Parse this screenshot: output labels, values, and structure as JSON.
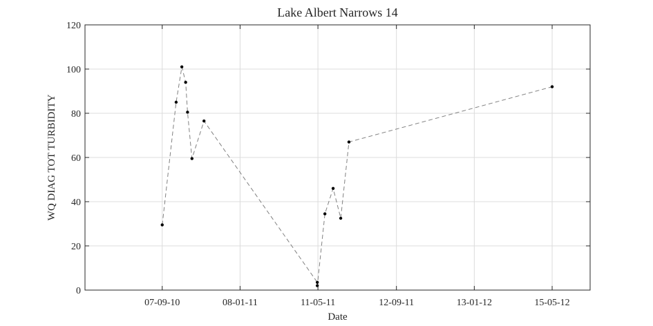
{
  "chart_data": {
    "type": "scatter",
    "title": "Lake Albert Narrows 14",
    "xlabel": "Date",
    "ylabel": "WQ DIAG TOT TURBIDITY",
    "ylim": [
      0,
      120
    ],
    "xlim": [
      "2010-05-08",
      "2012-07-14"
    ],
    "x_tick_values": [
      "2010-09-07",
      "2011-01-08",
      "2011-05-11",
      "2011-09-12",
      "2012-01-13",
      "2012-05-15"
    ],
    "x_tick_labels": [
      "07-09-10",
      "08-01-11",
      "11-05-11",
      "12-09-11",
      "13-01-12",
      "15-05-12"
    ],
    "y_ticks": [
      0,
      20,
      40,
      60,
      80,
      100,
      120
    ],
    "grid": true,
    "series": [
      {
        "line_style": "dashed",
        "line_color": "#808080",
        "marker_color": "#000000",
        "points": [
          {
            "x": "2010-09-07",
            "y": 29.5
          },
          {
            "x": "2010-09-29",
            "y": 85
          },
          {
            "x": "2010-10-08",
            "y": 101
          },
          {
            "x": "2010-10-14",
            "y": 94
          },
          {
            "x": "2010-10-17",
            "y": 80.5
          },
          {
            "x": "2010-10-24",
            "y": 59.5
          },
          {
            "x": "2010-11-12",
            "y": 76.5
          },
          {
            "x": "2011-05-10",
            "y": 3.5
          },
          {
            "x": "2011-05-10",
            "y": 2
          },
          {
            "x": "2011-05-22",
            "y": 34.5
          },
          {
            "x": "2011-06-04",
            "y": 46
          },
          {
            "x": "2011-06-16",
            "y": 32.5
          },
          {
            "x": "2011-06-29",
            "y": 67
          },
          {
            "x": "2012-05-15",
            "y": 92
          }
        ]
      }
    ]
  }
}
